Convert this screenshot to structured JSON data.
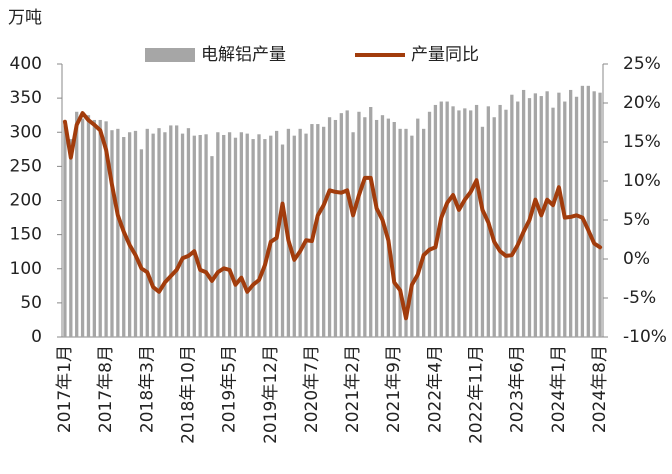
{
  "chart_data": {
    "type": "bar",
    "ylabel": "万吨",
    "categories": [
      "2017年1月",
      null,
      null,
      null,
      null,
      null,
      null,
      "2017年8月",
      null,
      null,
      null,
      null,
      null,
      null,
      "2018年3月",
      null,
      null,
      null,
      null,
      null,
      null,
      "2018年10月",
      null,
      null,
      null,
      null,
      null,
      null,
      "2019年5月",
      null,
      null,
      null,
      null,
      null,
      null,
      "2019年12月",
      null,
      null,
      null,
      null,
      null,
      null,
      "2020年7月",
      null,
      null,
      null,
      null,
      null,
      null,
      "2021年2月",
      null,
      null,
      null,
      null,
      null,
      null,
      "2021年9月",
      null,
      null,
      null,
      null,
      null,
      null,
      "2022年4月",
      null,
      null,
      null,
      null,
      null,
      null,
      "2022年11月",
      null,
      null,
      null,
      null,
      null,
      null,
      "2023年6月",
      null,
      null,
      null,
      null,
      null,
      null,
      "2024年1月",
      null,
      null,
      null,
      null,
      null,
      null,
      "2024年8月"
    ],
    "series": [
      {
        "name": "电解铝产量",
        "type": "bar",
        "color": "#a6a6a6",
        "values": [
          310,
          290,
          330,
          320,
          325,
          318,
          318,
          316,
          303,
          305,
          293,
          300,
          302,
          275,
          305,
          298,
          306,
          300,
          310,
          310,
          298,
          306,
          295,
          296,
          297,
          265,
          300,
          296,
          300,
          292,
          300,
          298,
          290,
          297,
          290,
          295,
          302,
          282,
          305,
          295,
          305,
          298,
          312,
          312,
          308,
          322,
          318,
          328,
          332,
          300,
          330,
          322,
          337,
          318,
          325,
          320,
          315,
          305,
          305,
          295,
          320,
          305,
          330,
          340,
          345,
          345,
          338,
          332,
          335,
          332,
          340,
          308,
          338,
          322,
          340,
          333,
          355,
          345,
          362,
          350,
          357,
          353,
          360,
          336,
          358,
          345,
          362,
          352,
          368,
          368,
          360,
          358
        ]
      },
      {
        "name": "产量同比",
        "type": "line",
        "axis": "y2",
        "color": "#a23c0c",
        "values": [
          17.6,
          13,
          17.2,
          18.7,
          17.8,
          17.2,
          16.5,
          14,
          9.5,
          5.6,
          3.5,
          1.8,
          0.5,
          -1.2,
          -1.7,
          -3.6,
          -4.2,
          -3,
          -2.2,
          -1.4,
          0.1,
          0.4,
          1,
          -1.4,
          -1.7,
          -2.8,
          -1.7,
          -1.2,
          -1.4,
          -3.3,
          -2.4,
          -4.2,
          -3.3,
          -2.7,
          -0.8,
          2.2,
          2.7,
          7.1,
          2.4,
          -0.1,
          1,
          2.4,
          2.3,
          5.6,
          6.9,
          8.8,
          8.6,
          8.5,
          8.8,
          5.6,
          8.2,
          10.4,
          10.4,
          6.5,
          5,
          2.4,
          -3,
          -4,
          -7.6,
          -3.3,
          -2,
          0.5,
          1.2,
          1.5,
          5.3,
          7.2,
          8.2,
          6.3,
          7.6,
          8.6,
          10.1,
          6.3,
          4.7,
          2.2,
          1,
          0.4,
          0.5,
          1.8,
          3.5,
          5,
          7.6,
          5.6,
          7.6,
          6.9,
          9.2,
          5.3,
          5.4,
          5.6,
          5.3,
          3.7,
          2,
          1.5
        ]
      }
    ],
    "ylim": [
      0,
      400
    ],
    "yticks": [
      0,
      50,
      100,
      150,
      200,
      250,
      300,
      350,
      400
    ],
    "y2lim": [
      -10,
      25
    ],
    "y2ticks": [
      {
        "value": -10,
        "label": "-10%"
      },
      {
        "value": -5,
        "label": "-5%"
      },
      {
        "value": 0,
        "label": "0%"
      },
      {
        "value": 5,
        "label": "5%"
      },
      {
        "value": 10,
        "label": "10%"
      },
      {
        "value": 15,
        "label": "15%"
      },
      {
        "value": 20,
        "label": "20%"
      },
      {
        "value": 25,
        "label": "25%"
      }
    ],
    "grid": false,
    "legend": "top"
  }
}
